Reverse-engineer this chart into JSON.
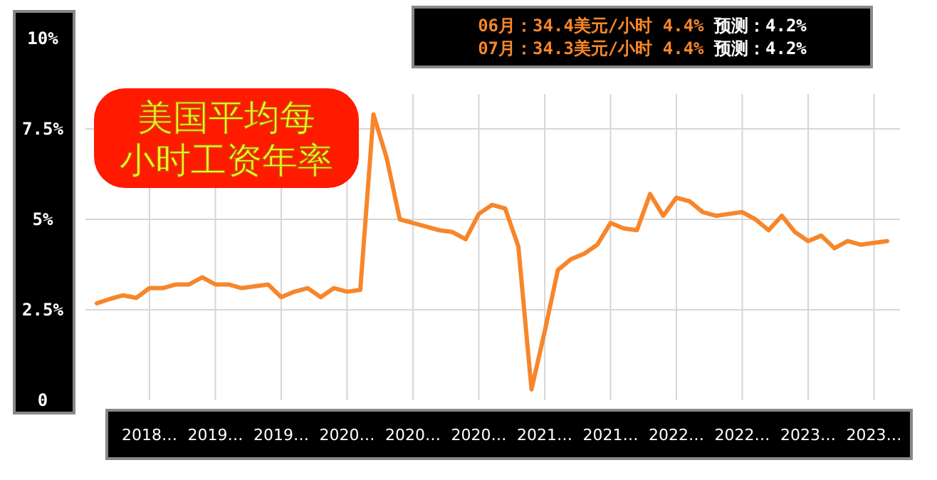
{
  "chart_data": {
    "type": "line",
    "title": "美国平均每小时工资年率",
    "annotations": [
      "06月：34.4美元/小时 4.4% 预测：4.2%",
      "07月：34.3美元/小时 4.4% 预测：4.2%"
    ],
    "categories": [
      null,
      null,
      null,
      null,
      "2018…",
      null,
      null,
      null,
      null,
      "2019…",
      null,
      null,
      null,
      null,
      "2019…",
      null,
      null,
      null,
      null,
      "2020…",
      null,
      null,
      null,
      null,
      "2020…",
      null,
      null,
      null,
      null,
      "2020…",
      null,
      null,
      null,
      null,
      "2021…",
      null,
      null,
      null,
      null,
      "2021…",
      null,
      null,
      null,
      null,
      "2022…",
      null,
      null,
      null,
      null,
      "2022…",
      null,
      null,
      null,
      null,
      "2023…",
      null,
      null,
      null,
      null,
      "2023…",
      null
    ],
    "series": [
      {
        "color": "#f7862a",
        "values": [
          2.68,
          2.8,
          2.9,
          2.83,
          3.1,
          3.1,
          3.2,
          3.2,
          3.4,
          3.2,
          3.2,
          3.1,
          3.15,
          3.2,
          2.85,
          3.0,
          3.1,
          2.85,
          3.1,
          3.0,
          3.05,
          7.9,
          6.7,
          5.0,
          4.9,
          4.8,
          4.7,
          4.65,
          4.45,
          5.15,
          5.4,
          5.3,
          4.25,
          0.3,
          1.9,
          3.6,
          3.9,
          4.05,
          4.3,
          4.9,
          4.75,
          4.7,
          5.7,
          5.1,
          5.6,
          5.5,
          5.2,
          5.1,
          5.15,
          5.2,
          5.0,
          4.7,
          5.1,
          4.65,
          4.4,
          4.55,
          4.2,
          4.4,
          4.3,
          4.35,
          4.4
        ]
      }
    ],
    "ylim": [
      0,
      10
    ],
    "yticks": [
      0,
      {
        "value": 2.5,
        "label": "2.5%"
      },
      {
        "value": 5,
        "label": "5%"
      },
      {
        "value": 7.5,
        "label": "7.5%"
      },
      {
        "value": 10,
        "label": "10%"
      }
    ],
    "grid": true,
    "marker": "none",
    "line_style": "solid"
  }
}
